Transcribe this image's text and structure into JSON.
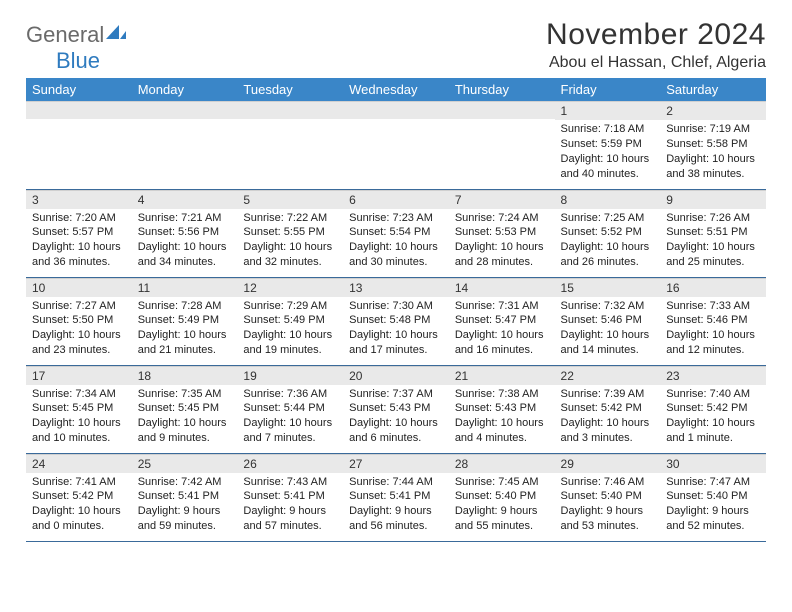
{
  "logo": {
    "general": "General",
    "blue": "Blue"
  },
  "header": {
    "month_title": "November 2024",
    "location": "Abou el Hassan, Chlef, Algeria"
  },
  "colors": {
    "header_bg": "#3a86c8",
    "header_fg": "#ffffff",
    "daynum_bg": "#e9e9e9",
    "border": "#3a6a9a",
    "logo_gray": "#6a6a6a",
    "logo_blue": "#2f7bbf",
    "page_bg": "#ffffff"
  },
  "day_names": [
    "Sunday",
    "Monday",
    "Tuesday",
    "Wednesday",
    "Thursday",
    "Friday",
    "Saturday"
  ],
  "weeks": [
    [
      {
        "n": "",
        "sr": "",
        "ss": "",
        "dl": ""
      },
      {
        "n": "",
        "sr": "",
        "ss": "",
        "dl": ""
      },
      {
        "n": "",
        "sr": "",
        "ss": "",
        "dl": ""
      },
      {
        "n": "",
        "sr": "",
        "ss": "",
        "dl": ""
      },
      {
        "n": "",
        "sr": "",
        "ss": "",
        "dl": ""
      },
      {
        "n": "1",
        "sr": "Sunrise: 7:18 AM",
        "ss": "Sunset: 5:59 PM",
        "dl": "Daylight: 10 hours and 40 minutes."
      },
      {
        "n": "2",
        "sr": "Sunrise: 7:19 AM",
        "ss": "Sunset: 5:58 PM",
        "dl": "Daylight: 10 hours and 38 minutes."
      }
    ],
    [
      {
        "n": "3",
        "sr": "Sunrise: 7:20 AM",
        "ss": "Sunset: 5:57 PM",
        "dl": "Daylight: 10 hours and 36 minutes."
      },
      {
        "n": "4",
        "sr": "Sunrise: 7:21 AM",
        "ss": "Sunset: 5:56 PM",
        "dl": "Daylight: 10 hours and 34 minutes."
      },
      {
        "n": "5",
        "sr": "Sunrise: 7:22 AM",
        "ss": "Sunset: 5:55 PM",
        "dl": "Daylight: 10 hours and 32 minutes."
      },
      {
        "n": "6",
        "sr": "Sunrise: 7:23 AM",
        "ss": "Sunset: 5:54 PM",
        "dl": "Daylight: 10 hours and 30 minutes."
      },
      {
        "n": "7",
        "sr": "Sunrise: 7:24 AM",
        "ss": "Sunset: 5:53 PM",
        "dl": "Daylight: 10 hours and 28 minutes."
      },
      {
        "n": "8",
        "sr": "Sunrise: 7:25 AM",
        "ss": "Sunset: 5:52 PM",
        "dl": "Daylight: 10 hours and 26 minutes."
      },
      {
        "n": "9",
        "sr": "Sunrise: 7:26 AM",
        "ss": "Sunset: 5:51 PM",
        "dl": "Daylight: 10 hours and 25 minutes."
      }
    ],
    [
      {
        "n": "10",
        "sr": "Sunrise: 7:27 AM",
        "ss": "Sunset: 5:50 PM",
        "dl": "Daylight: 10 hours and 23 minutes."
      },
      {
        "n": "11",
        "sr": "Sunrise: 7:28 AM",
        "ss": "Sunset: 5:49 PM",
        "dl": "Daylight: 10 hours and 21 minutes."
      },
      {
        "n": "12",
        "sr": "Sunrise: 7:29 AM",
        "ss": "Sunset: 5:49 PM",
        "dl": "Daylight: 10 hours and 19 minutes."
      },
      {
        "n": "13",
        "sr": "Sunrise: 7:30 AM",
        "ss": "Sunset: 5:48 PM",
        "dl": "Daylight: 10 hours and 17 minutes."
      },
      {
        "n": "14",
        "sr": "Sunrise: 7:31 AM",
        "ss": "Sunset: 5:47 PM",
        "dl": "Daylight: 10 hours and 16 minutes."
      },
      {
        "n": "15",
        "sr": "Sunrise: 7:32 AM",
        "ss": "Sunset: 5:46 PM",
        "dl": "Daylight: 10 hours and 14 minutes."
      },
      {
        "n": "16",
        "sr": "Sunrise: 7:33 AM",
        "ss": "Sunset: 5:46 PM",
        "dl": "Daylight: 10 hours and 12 minutes."
      }
    ],
    [
      {
        "n": "17",
        "sr": "Sunrise: 7:34 AM",
        "ss": "Sunset: 5:45 PM",
        "dl": "Daylight: 10 hours and 10 minutes."
      },
      {
        "n": "18",
        "sr": "Sunrise: 7:35 AM",
        "ss": "Sunset: 5:45 PM",
        "dl": "Daylight: 10 hours and 9 minutes."
      },
      {
        "n": "19",
        "sr": "Sunrise: 7:36 AM",
        "ss": "Sunset: 5:44 PM",
        "dl": "Daylight: 10 hours and 7 minutes."
      },
      {
        "n": "20",
        "sr": "Sunrise: 7:37 AM",
        "ss": "Sunset: 5:43 PM",
        "dl": "Daylight: 10 hours and 6 minutes."
      },
      {
        "n": "21",
        "sr": "Sunrise: 7:38 AM",
        "ss": "Sunset: 5:43 PM",
        "dl": "Daylight: 10 hours and 4 minutes."
      },
      {
        "n": "22",
        "sr": "Sunrise: 7:39 AM",
        "ss": "Sunset: 5:42 PM",
        "dl": "Daylight: 10 hours and 3 minutes."
      },
      {
        "n": "23",
        "sr": "Sunrise: 7:40 AM",
        "ss": "Sunset: 5:42 PM",
        "dl": "Daylight: 10 hours and 1 minute."
      }
    ],
    [
      {
        "n": "24",
        "sr": "Sunrise: 7:41 AM",
        "ss": "Sunset: 5:42 PM",
        "dl": "Daylight: 10 hours and 0 minutes."
      },
      {
        "n": "25",
        "sr": "Sunrise: 7:42 AM",
        "ss": "Sunset: 5:41 PM",
        "dl": "Daylight: 9 hours and 59 minutes."
      },
      {
        "n": "26",
        "sr": "Sunrise: 7:43 AM",
        "ss": "Sunset: 5:41 PM",
        "dl": "Daylight: 9 hours and 57 minutes."
      },
      {
        "n": "27",
        "sr": "Sunrise: 7:44 AM",
        "ss": "Sunset: 5:41 PM",
        "dl": "Daylight: 9 hours and 56 minutes."
      },
      {
        "n": "28",
        "sr": "Sunrise: 7:45 AM",
        "ss": "Sunset: 5:40 PM",
        "dl": "Daylight: 9 hours and 55 minutes."
      },
      {
        "n": "29",
        "sr": "Sunrise: 7:46 AM",
        "ss": "Sunset: 5:40 PM",
        "dl": "Daylight: 9 hours and 53 minutes."
      },
      {
        "n": "30",
        "sr": "Sunrise: 7:47 AM",
        "ss": "Sunset: 5:40 PM",
        "dl": "Daylight: 9 hours and 52 minutes."
      }
    ]
  ]
}
